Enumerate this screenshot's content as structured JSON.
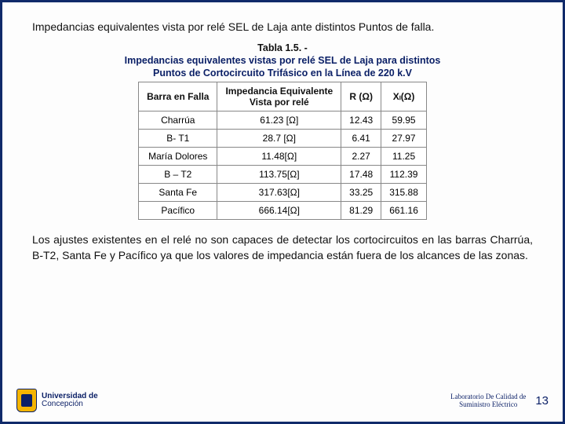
{
  "intro": "Impedancias equivalentes vista por relé SEL de Laja ante distintos Puntos de falla.",
  "table": {
    "caption": "Tabla 1.5. -",
    "subcaption_l1": "Impedancias equivalentes vistas por relé SEL de Laja para distintos",
    "subcaption_l2": "Puntos de Cortocircuito Trifásico en la Línea de 220 k.V",
    "headers": {
      "c0": "Barra en Falla",
      "c1_l1": "Impedancia Equivalente",
      "c1_l2": "Vista por relé",
      "c2": "R (Ω)",
      "c3": "Xₗ(Ω)"
    },
    "rows": [
      {
        "barra": "Charrúa",
        "z": "61.23 [Ω]",
        "r": "12.43",
        "x": "59.95"
      },
      {
        "barra": "B- T1",
        "z": "28.7 [Ω]",
        "r": "6.41",
        "x": "27.97"
      },
      {
        "barra": "María Dolores",
        "z": "11.48[Ω]",
        "r": "2.27",
        "x": "11.25"
      },
      {
        "barra": "B – T2",
        "z": "113.75[Ω]",
        "r": "17.48",
        "x": "112.39"
      },
      {
        "barra": "Santa Fe",
        "z": "317.63[Ω]",
        "r": "33.25",
        "x": "315.88"
      },
      {
        "barra": "Pacífico",
        "z": "666.14[Ω]",
        "r": "81.29",
        "x": "661.16"
      }
    ]
  },
  "conclusion": "Los ajustes existentes en el relé no son capaces de detectar los cortocircuitos en las barras Charrúa, B-T2, Santa Fe y Pacífico ya que los valores de impedancia están fuera de los alcances de las zonas.",
  "footer": {
    "uni1": "Universidad de",
    "uni2": "Concepción",
    "lab_l1": "Laboratorio De Calidad de",
    "lab_l2": "Suministro Eléctrico",
    "page": "13"
  },
  "colors": {
    "border": "#102a6a",
    "accent": "#0a1f66",
    "shield": "#f4b400"
  }
}
